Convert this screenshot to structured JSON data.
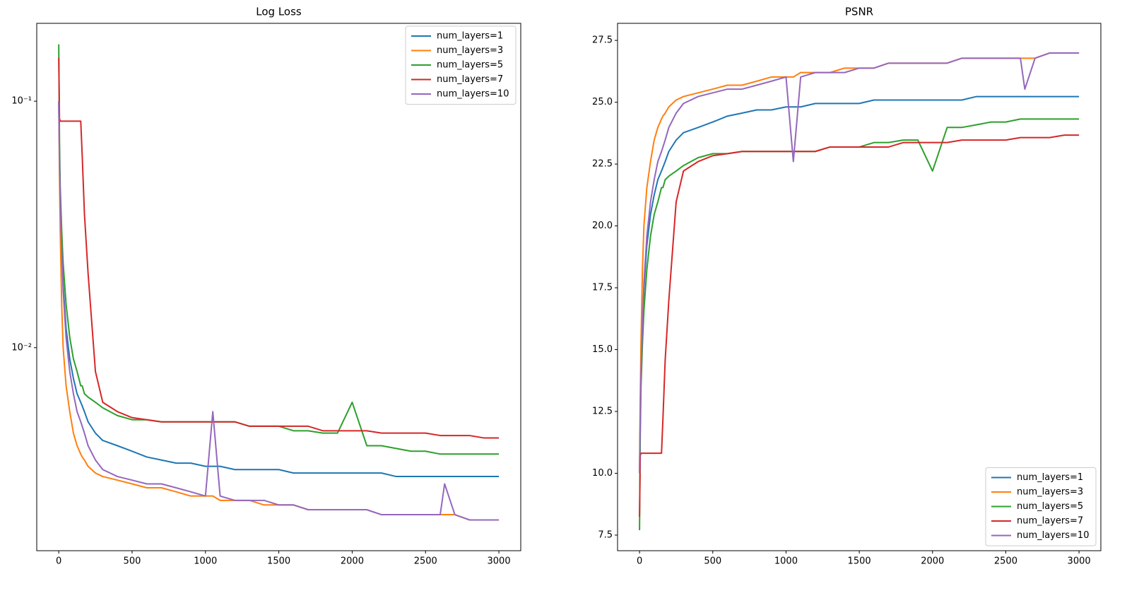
{
  "chart_data": [
    {
      "type": "line",
      "title": "Log Loss",
      "yscale": "log",
      "legend": "upper right",
      "x": [
        0,
        5,
        10,
        20,
        30,
        50,
        75,
        100,
        125,
        150,
        160,
        175,
        200,
        250,
        300,
        400,
        500,
        600,
        700,
        800,
        900,
        1000,
        1050,
        1100,
        1200,
        1300,
        1400,
        1500,
        1600,
        1700,
        1800,
        1900,
        2000,
        2100,
        2200,
        2300,
        2400,
        2500,
        2600,
        2630,
        2700,
        2800,
        2900,
        3000
      ],
      "xlim": [
        -150,
        3149
      ],
      "xticks": [
        0,
        500,
        1000,
        1500,
        2000,
        2500,
        3000
      ],
      "ylim": [
        0.0015,
        0.207
      ],
      "yticks": [
        {
          "value": 0.01,
          "label": "10⁻²"
        },
        {
          "value": 0.1,
          "label": "10⁻¹"
        }
      ],
      "series": [
        {
          "name": "num_layers=1",
          "color": "#1f77b4",
          "values": [
            0.1,
            0.06,
            0.04,
            0.025,
            0.018,
            0.012,
            0.009,
            0.0075,
            0.0065,
            0.006,
            0.0058,
            0.0055,
            0.005,
            0.0045,
            0.0042,
            0.004,
            0.0038,
            0.0036,
            0.0035,
            0.0034,
            0.0034,
            0.0033,
            0.0033,
            0.0033,
            0.0032,
            0.0032,
            0.0032,
            0.0032,
            0.0031,
            0.0031,
            0.0031,
            0.0031,
            0.0031,
            0.0031,
            0.0031,
            0.003,
            0.003,
            0.003,
            0.003,
            0.003,
            0.003,
            0.003,
            0.003,
            0.003
          ]
        },
        {
          "name": "num_layers=3",
          "color": "#ff7f0e",
          "values": [
            0.1,
            0.05,
            0.03,
            0.015,
            0.01,
            0.007,
            0.0055,
            0.0045,
            0.004,
            0.0037,
            0.0036,
            0.0035,
            0.0033,
            0.0031,
            0.003,
            0.0029,
            0.0028,
            0.0027,
            0.0027,
            0.0026,
            0.0025,
            0.0025,
            0.0025,
            0.0024,
            0.0024,
            0.0024,
            0.0023,
            0.0023,
            0.0023,
            0.0022,
            0.0022,
            0.0022,
            0.0022,
            0.0022,
            0.0021,
            0.0021,
            0.0021,
            0.0021,
            0.0021,
            0.0021,
            0.0021,
            0.002,
            0.002,
            0.002
          ]
        },
        {
          "name": "num_layers=5",
          "color": "#2ca02c",
          "values": [
            0.17,
            0.07,
            0.045,
            0.03,
            0.022,
            0.015,
            0.011,
            0.009,
            0.008,
            0.007,
            0.007,
            0.0065,
            0.0063,
            0.006,
            0.0057,
            0.0053,
            0.0051,
            0.0051,
            0.005,
            0.005,
            0.005,
            0.005,
            0.005,
            0.005,
            0.005,
            0.0048,
            0.0048,
            0.0048,
            0.0046,
            0.0046,
            0.0045,
            0.0045,
            0.006,
            0.004,
            0.004,
            0.0039,
            0.0038,
            0.0038,
            0.0037,
            0.0037,
            0.0037,
            0.0037,
            0.0037,
            0.0037
          ]
        },
        {
          "name": "num_layers=7",
          "color": "#d62728",
          "values": [
            0.15,
            0.085,
            0.083,
            0.083,
            0.083,
            0.083,
            0.083,
            0.083,
            0.083,
            0.083,
            0.06,
            0.035,
            0.02,
            0.008,
            0.006,
            0.0055,
            0.0052,
            0.0051,
            0.005,
            0.005,
            0.005,
            0.005,
            0.005,
            0.005,
            0.005,
            0.0048,
            0.0048,
            0.0048,
            0.0048,
            0.0048,
            0.0046,
            0.0046,
            0.0046,
            0.0046,
            0.0045,
            0.0045,
            0.0045,
            0.0045,
            0.0044,
            0.0044,
            0.0044,
            0.0044,
            0.0043,
            0.0043
          ]
        },
        {
          "name": "num_layers=10",
          "color": "#9467bd",
          "values": [
            0.1,
            0.06,
            0.04,
            0.025,
            0.017,
            0.011,
            0.008,
            0.0065,
            0.0055,
            0.005,
            0.0048,
            0.0045,
            0.004,
            0.0035,
            0.0032,
            0.003,
            0.0029,
            0.0028,
            0.0028,
            0.0027,
            0.0026,
            0.0025,
            0.0055,
            0.0025,
            0.0024,
            0.0024,
            0.0024,
            0.0023,
            0.0023,
            0.0022,
            0.0022,
            0.0022,
            0.0022,
            0.0022,
            0.0021,
            0.0021,
            0.0021,
            0.0021,
            0.0021,
            0.0028,
            0.0021,
            0.002,
            0.002,
            0.002
          ]
        }
      ]
    },
    {
      "type": "line",
      "title": "PSNR",
      "legend": "lower right",
      "x": [
        0,
        5,
        10,
        20,
        30,
        50,
        75,
        100,
        125,
        150,
        160,
        175,
        200,
        250,
        300,
        400,
        500,
        600,
        700,
        800,
        900,
        1000,
        1050,
        1100,
        1200,
        1300,
        1400,
        1500,
        1600,
        1700,
        1800,
        1900,
        2000,
        2100,
        2200,
        2300,
        2400,
        2500,
        2600,
        2630,
        2700,
        2800,
        2900,
        3000
      ],
      "xlim": [
        -150,
        3149
      ],
      "xticks": [
        0,
        500,
        1000,
        1500,
        2000,
        2500,
        3000
      ],
      "ylim": [
        6.87,
        28.19
      ],
      "yticks": [
        7.5,
        {
          "value": 10,
          "label": "10.0"
        },
        12.5,
        {
          "value": 15,
          "label": "15.0"
        },
        17.5,
        {
          "value": 20,
          "label": "20.0"
        },
        22.5,
        {
          "value": 25,
          "label": "25.0"
        },
        27.5
      ],
      "series": [
        {
          "name": "num_layers=1",
          "color": "#1f77b4",
          "values": [
            10,
            12.22,
            13.98,
            16.02,
            17.45,
            19.21,
            20.46,
            21.25,
            21.87,
            22.22,
            22.37,
            22.6,
            23.01,
            23.47,
            23.77,
            23.98,
            24.2,
            24.44,
            24.56,
            24.69,
            24.69,
            24.81,
            24.81,
            24.81,
            24.95,
            24.95,
            24.95,
            24.95,
            25.09,
            25.09,
            25.09,
            25.09,
            25.09,
            25.09,
            25.09,
            25.23,
            25.23,
            25.23,
            25.23,
            25.23,
            25.23,
            25.23,
            25.23,
            25.23
          ]
        },
        {
          "name": "num_layers=3",
          "color": "#ff7f0e",
          "values": [
            10,
            13.01,
            15.23,
            18.24,
            20,
            21.55,
            22.6,
            23.47,
            23.98,
            24.32,
            24.44,
            24.56,
            24.81,
            25.09,
            25.23,
            25.38,
            25.53,
            25.69,
            25.69,
            25.85,
            26.02,
            26.02,
            26.02,
            26.2,
            26.2,
            26.2,
            26.38,
            26.38,
            26.38,
            26.58,
            26.58,
            26.58,
            26.58,
            26.58,
            26.78,
            26.78,
            26.78,
            26.78,
            26.78,
            26.78,
            26.78,
            26.99,
            26.99,
            26.99
          ]
        },
        {
          "name": "num_layers=5",
          "color": "#2ca02c",
          "values": [
            7.7,
            11.55,
            13.47,
            15.23,
            16.58,
            18.24,
            19.59,
            20.46,
            20.97,
            21.55,
            21.55,
            21.87,
            22.01,
            22.22,
            22.44,
            22.76,
            22.92,
            22.92,
            23.01,
            23.01,
            23.01,
            23.01,
            23.01,
            23.01,
            23.01,
            23.19,
            23.19,
            23.19,
            23.37,
            23.37,
            23.47,
            23.47,
            22.22,
            23.98,
            23.98,
            24.09,
            24.2,
            24.2,
            24.32,
            24.32,
            24.32,
            24.32,
            24.32,
            24.32
          ]
        },
        {
          "name": "num_layers=7",
          "color": "#d62728",
          "values": [
            8.24,
            10.71,
            10.81,
            10.81,
            10.81,
            10.81,
            10.81,
            10.81,
            10.81,
            10.81,
            12.22,
            14.56,
            16.99,
            20.97,
            22.22,
            22.6,
            22.84,
            22.92,
            23.01,
            23.01,
            23.01,
            23.01,
            23.01,
            23.01,
            23.01,
            23.19,
            23.19,
            23.19,
            23.19,
            23.19,
            23.37,
            23.37,
            23.37,
            23.37,
            23.47,
            23.47,
            23.47,
            23.47,
            23.57,
            23.57,
            23.57,
            23.57,
            23.67,
            23.67
          ]
        },
        {
          "name": "num_layers=10",
          "color": "#9467bd",
          "values": [
            10,
            12.22,
            13.98,
            16.02,
            17.7,
            19.59,
            20.97,
            21.87,
            22.6,
            23.01,
            23.19,
            23.47,
            23.98,
            24.56,
            24.95,
            25.23,
            25.38,
            25.53,
            25.53,
            25.69,
            25.85,
            26.02,
            22.6,
            26.02,
            26.2,
            26.2,
            26.2,
            26.38,
            26.38,
            26.58,
            26.58,
            26.58,
            26.58,
            26.58,
            26.78,
            26.78,
            26.78,
            26.78,
            26.78,
            25.53,
            26.78,
            26.99,
            26.99,
            26.99
          ]
        }
      ]
    }
  ]
}
